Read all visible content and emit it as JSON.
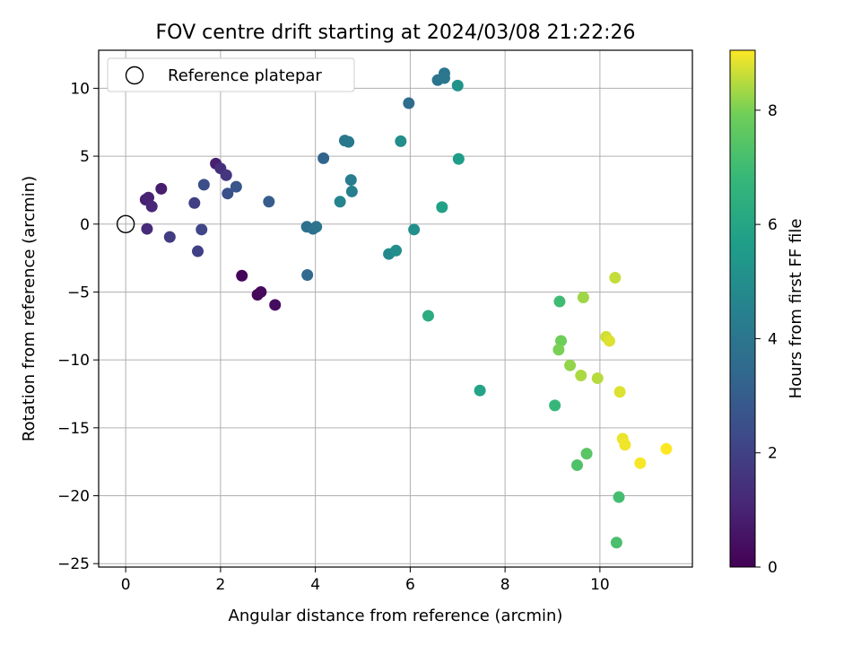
{
  "chart_data": {
    "type": "scatter",
    "title": "FOV centre drift starting at 2024/03/08 21:22:26",
    "xlabel": "Angular distance from reference (arcmin)",
    "ylabel": "Rotation from reference (arcmin)",
    "xlim": [
      -0.57,
      11.95
    ],
    "ylim": [
      -25.25,
      12.8
    ],
    "xticks": [
      0,
      2,
      4,
      6,
      8,
      10
    ],
    "xtick_labels": [
      "0",
      "2",
      "4",
      "6",
      "8",
      "10"
    ],
    "yticks": [
      -25,
      -20,
      -15,
      -10,
      -5,
      0,
      5,
      10
    ],
    "ytick_labels": [
      "−25",
      "−20",
      "−15",
      "−10",
      "−5",
      "0",
      "5",
      "10"
    ],
    "grid": true,
    "legend": {
      "position": "upper-left",
      "entries": [
        "Reference platepar"
      ]
    },
    "reference_point": {
      "x": 0,
      "y": 0,
      "marker": "open-circle",
      "label": "Reference platepar"
    },
    "colorbar": {
      "label": "Hours from first FF file",
      "colormap": "viridis",
      "range": [
        0,
        9.05
      ],
      "ticks": [
        0,
        2,
        4,
        6,
        8
      ],
      "tick_labels": [
        "0",
        "2",
        "4",
        "6",
        "8"
      ]
    },
    "series": [
      {
        "points": [
          {
            "x": 2.45,
            "y": -3.8,
            "c": 0.1
          },
          {
            "x": 2.78,
            "y": -5.2,
            "c": 0.2
          },
          {
            "x": 2.85,
            "y": -5.0,
            "c": 0.25
          },
          {
            "x": 3.15,
            "y": -5.95,
            "c": 0.35
          },
          {
            "x": 0.75,
            "y": 2.6,
            "c": 0.8
          },
          {
            "x": 0.42,
            "y": 1.8,
            "c": 0.9
          },
          {
            "x": 0.48,
            "y": 1.95,
            "c": 1.0
          },
          {
            "x": 0.55,
            "y": 1.3,
            "c": 1.1
          },
          {
            "x": 1.9,
            "y": 4.45,
            "c": 0.9
          },
          {
            "x": 0.45,
            "y": -0.35,
            "c": 1.2
          },
          {
            "x": 2.0,
            "y": 4.1,
            "c": 1.4
          },
          {
            "x": 2.12,
            "y": 3.6,
            "c": 1.6
          },
          {
            "x": 0.93,
            "y": -0.95,
            "c": 1.8
          },
          {
            "x": 1.45,
            "y": 1.55,
            "c": 1.9
          },
          {
            "x": 1.52,
            "y": -2.0,
            "c": 2.0
          },
          {
            "x": 1.6,
            "y": -0.4,
            "c": 2.2
          },
          {
            "x": 1.65,
            "y": 2.9,
            "c": 2.4
          },
          {
            "x": 2.15,
            "y": 2.25,
            "c": 2.5
          },
          {
            "x": 2.33,
            "y": 2.75,
            "c": 2.7
          },
          {
            "x": 3.02,
            "y": 1.65,
            "c": 3.0
          },
          {
            "x": 4.17,
            "y": 4.85,
            "c": 3.3
          },
          {
            "x": 3.83,
            "y": -3.75,
            "c": 3.5
          },
          {
            "x": 3.82,
            "y": -0.2,
            "c": 3.7
          },
          {
            "x": 3.95,
            "y": -0.35,
            "c": 3.8
          },
          {
            "x": 4.02,
            "y": -0.2,
            "c": 3.9
          },
          {
            "x": 5.97,
            "y": 8.9,
            "c": 3.6
          },
          {
            "x": 6.58,
            "y": 10.6,
            "c": 3.9
          },
          {
            "x": 6.72,
            "y": 11.1,
            "c": 4.0
          },
          {
            "x": 6.72,
            "y": 10.75,
            "c": 4.05
          },
          {
            "x": 4.62,
            "y": 6.15,
            "c": 4.0
          },
          {
            "x": 4.7,
            "y": 6.05,
            "c": 4.1
          },
          {
            "x": 4.75,
            "y": 3.25,
            "c": 4.3
          },
          {
            "x": 4.77,
            "y": 2.4,
            "c": 4.4
          },
          {
            "x": 4.52,
            "y": 1.65,
            "c": 4.6
          },
          {
            "x": 5.55,
            "y": -2.2,
            "c": 4.8
          },
          {
            "x": 5.7,
            "y": -1.95,
            "c": 5.0
          },
          {
            "x": 6.08,
            "y": -0.4,
            "c": 5.1
          },
          {
            "x": 5.8,
            "y": 6.1,
            "c": 5.0
          },
          {
            "x": 7.0,
            "y": 10.2,
            "c": 5.2
          },
          {
            "x": 7.02,
            "y": 4.8,
            "c": 5.6
          },
          {
            "x": 6.67,
            "y": 1.25,
            "c": 5.8
          },
          {
            "x": 7.47,
            "y": -12.25,
            "c": 5.9
          },
          {
            "x": 6.38,
            "y": -6.75,
            "c": 6.3
          },
          {
            "x": 9.05,
            "y": -13.35,
            "c": 6.8
          },
          {
            "x": 9.15,
            "y": -5.7,
            "c": 7.0
          },
          {
            "x": 10.4,
            "y": -20.1,
            "c": 7.1
          },
          {
            "x": 10.35,
            "y": -23.45,
            "c": 7.2
          },
          {
            "x": 9.52,
            "y": -17.75,
            "c": 7.3
          },
          {
            "x": 9.72,
            "y": -16.9,
            "c": 7.5
          },
          {
            "x": 9.18,
            "y": -8.6,
            "c": 7.9
          },
          {
            "x": 9.13,
            "y": -9.25,
            "c": 8.0
          },
          {
            "x": 9.37,
            "y": -10.4,
            "c": 8.2
          },
          {
            "x": 9.65,
            "y": -5.4,
            "c": 8.3
          },
          {
            "x": 9.6,
            "y": -11.15,
            "c": 8.4
          },
          {
            "x": 9.95,
            "y": -11.35,
            "c": 8.5
          },
          {
            "x": 10.32,
            "y": -3.95,
            "c": 8.6
          },
          {
            "x": 10.13,
            "y": -8.3,
            "c": 8.7
          },
          {
            "x": 10.2,
            "y": -8.6,
            "c": 8.8
          },
          {
            "x": 10.42,
            "y": -12.35,
            "c": 8.8
          },
          {
            "x": 10.48,
            "y": -15.8,
            "c": 8.9
          },
          {
            "x": 10.53,
            "y": -16.25,
            "c": 8.95
          },
          {
            "x": 10.85,
            "y": -17.6,
            "c": 9.0
          },
          {
            "x": 11.4,
            "y": -16.55,
            "c": 9.05
          }
        ]
      }
    ]
  }
}
